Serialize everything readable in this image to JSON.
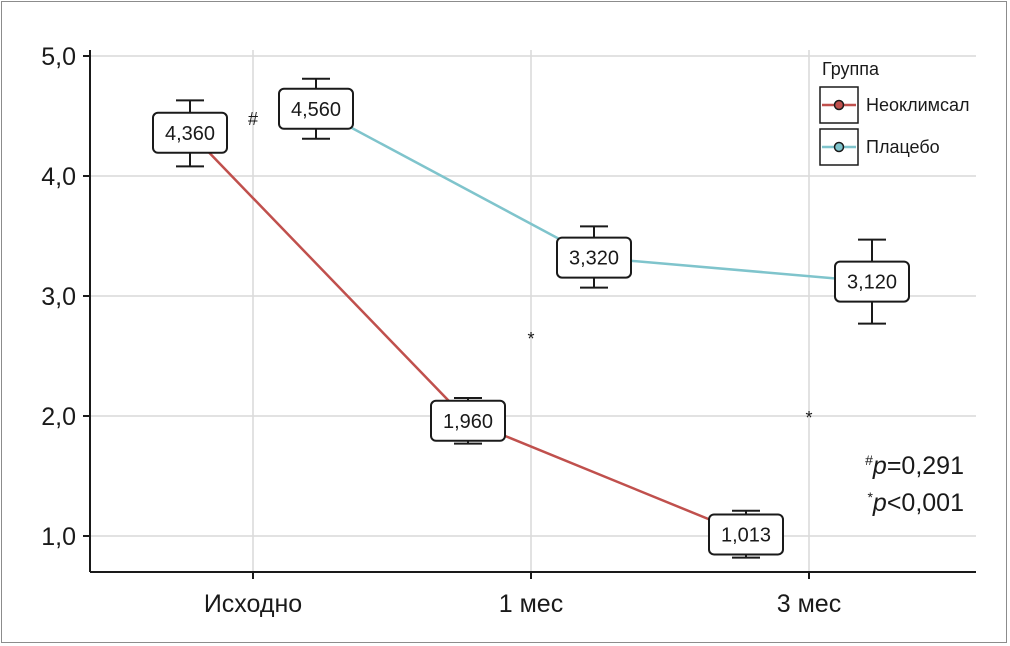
{
  "chart_data": {
    "type": "line",
    "title": "",
    "xlabel": "",
    "ylabel": "",
    "categories": [
      "Исходно",
      "1 мес",
      "3 мес"
    ],
    "ylim": [
      0.7,
      5.05
    ],
    "yticks": [
      1.0,
      2.0,
      3.0,
      4.0,
      5.0
    ],
    "ytick_labels": [
      "1,0",
      "2,0",
      "3,0",
      "4,0",
      "5,0"
    ],
    "grid": true,
    "legend": {
      "title": "Группа",
      "position": "top-right"
    },
    "series": [
      {
        "name": "Неоклимсал",
        "color": "#c0504d",
        "values": [
          4.36,
          1.96,
          1.013
        ],
        "labels": [
          "4,360",
          "1,960",
          "1,013"
        ],
        "error_low": [
          4.08,
          1.77,
          0.82
        ],
        "error_high": [
          4.63,
          2.15,
          1.21
        ]
      },
      {
        "name": "Плацебо",
        "color": "#7fc4cc",
        "values": [
          4.56,
          3.32,
          3.12
        ],
        "labels": [
          "4,560",
          "3,320",
          "3,120"
        ],
        "error_low": [
          4.31,
          3.07,
          2.77
        ],
        "error_high": [
          4.81,
          3.58,
          3.47
        ]
      }
    ],
    "markers": [
      {
        "category": "Исходно",
        "symbol": "#",
        "y": 4.49
      },
      {
        "category": "1 мес",
        "symbol": "*",
        "y": 2.66
      },
      {
        "category": "3 мес",
        "symbol": "*",
        "y": 2.0
      }
    ],
    "notes": [
      {
        "sup": "#",
        "italic": "p",
        "rest": "=0,291"
      },
      {
        "sup": "*",
        "italic": "p",
        "rest": "<0,001"
      }
    ]
  }
}
